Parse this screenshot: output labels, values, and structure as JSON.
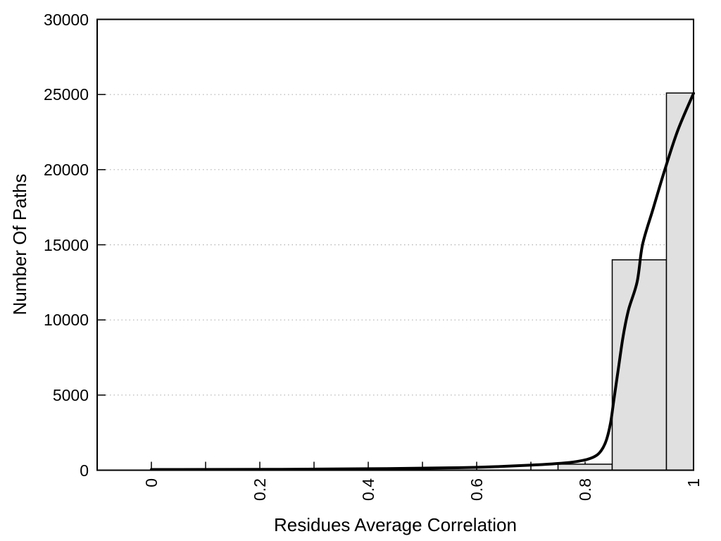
{
  "chart_data": {
    "type": "histogram",
    "xlabel": "Residues Average Correlation",
    "ylabel": "Number Of Paths",
    "xlim": [
      -0.1,
      1.0
    ],
    "ylim": [
      0,
      30000
    ],
    "x_tick_minor_step": 0.1,
    "x_ticks": [
      {
        "value": 0,
        "label": "0"
      },
      {
        "value": 0.2,
        "label": "0.2"
      },
      {
        "value": 0.4,
        "label": "0.4"
      },
      {
        "value": 0.6,
        "label": "0.6"
      },
      {
        "value": 0.8,
        "label": "0.8"
      },
      {
        "value": 1,
        "label": "1"
      }
    ],
    "y_ticks": [
      {
        "value": 0,
        "label": "0"
      },
      {
        "value": 5000,
        "label": "5000"
      },
      {
        "value": 10000,
        "label": "10000"
      },
      {
        "value": 15000,
        "label": "15000"
      },
      {
        "value": 20000,
        "label": "20000"
      },
      {
        "value": 25000,
        "label": "25000"
      },
      {
        "value": 30000,
        "label": "30000"
      }
    ],
    "grid": {
      "horizontal_dotted_at": [
        5000,
        10000,
        15000,
        20000,
        25000
      ],
      "vertical": false
    },
    "legend": "none",
    "bars": [
      {
        "x0": 0.75,
        "x1": 0.85,
        "count": 400
      },
      {
        "x0": 0.85,
        "x1": 0.95,
        "count": 14000
      },
      {
        "x0": 0.95,
        "x1": 1.05,
        "count": 25100
      }
    ],
    "curve": {
      "name": "frequency-fit-curve",
      "points": [
        [
          0.0,
          45
        ],
        [
          0.24,
          60
        ],
        [
          0.435,
          110
        ],
        [
          0.565,
          165
        ],
        [
          0.643,
          250
        ],
        [
          0.701,
          340
        ],
        [
          0.747,
          440
        ],
        [
          0.779,
          550
        ],
        [
          0.805,
          730
        ],
        [
          0.822,
          1010
        ],
        [
          0.832,
          1430
        ],
        [
          0.84,
          2090
        ],
        [
          0.847,
          3160
        ],
        [
          0.853,
          4660
        ],
        [
          0.861,
          6680
        ],
        [
          0.87,
          8880
        ],
        [
          0.88,
          10660
        ],
        [
          0.896,
          12540
        ],
        [
          0.906,
          15020
        ],
        [
          0.926,
          17460
        ],
        [
          0.947,
          19990
        ],
        [
          0.971,
          22620
        ],
        [
          1.0,
          25080
        ]
      ]
    },
    "colors": {
      "curve": "#000000",
      "bar_fill": "#e0e0e0",
      "bar_stroke": "#000000",
      "grid": "#b0b0b0",
      "axis": "#000000",
      "text": "#000000",
      "background": "#ffffff"
    }
  }
}
